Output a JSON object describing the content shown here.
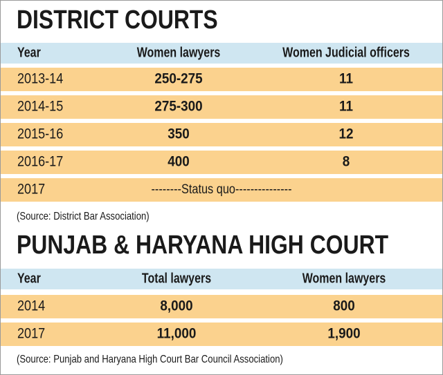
{
  "district_courts": {
    "title": "DISTRICT COURTS",
    "columns": [
      "Year",
      "Women lawyers",
      "Women Judicial officers"
    ],
    "rows": [
      [
        "2013-14",
        "250-275",
        "11"
      ],
      [
        "2014-15",
        "275-300",
        "11"
      ],
      [
        "2015-16",
        "350",
        "12"
      ],
      [
        "2016-17",
        "400",
        "8"
      ],
      [
        "2017",
        "--------Status quo---------------"
      ]
    ],
    "source": "(Source: District Bar Association)"
  },
  "high_court": {
    "title": "PUNJAB & HARYANA HIGH COURT",
    "columns": [
      "Year",
      "Total lawyers",
      "Women lawyers"
    ],
    "rows": [
      [
        "2014",
        "8,000",
        "800"
      ],
      [
        "2017",
        "11,000",
        "1,900"
      ]
    ],
    "source": "(Source: Punjab and Haryana High Court Bar Council Association)"
  }
}
